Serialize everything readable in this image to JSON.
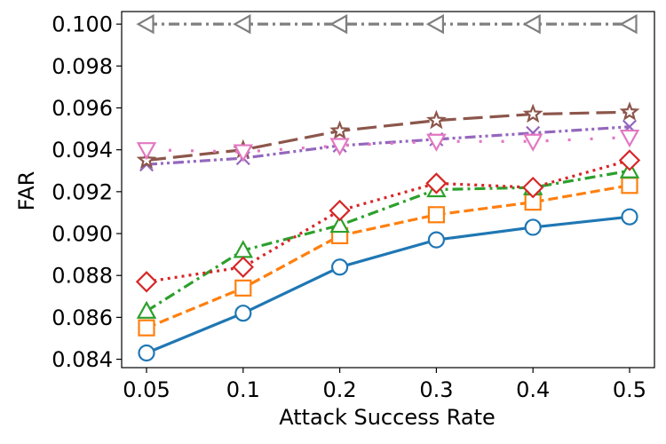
{
  "chart_data": {
    "type": "line",
    "xlabel": "Attack Success Rate",
    "ylabel": "FAR",
    "categories": [
      "0.05",
      "0.1",
      "0.2",
      "0.3",
      "0.4",
      "0.5"
    ],
    "ylim": [
      0.0836,
      0.1006
    ],
    "yticks": [
      "0.084",
      "0.086",
      "0.088",
      "0.090",
      "0.092",
      "0.094",
      "0.096",
      "0.098",
      "0.100"
    ],
    "yticks_values": [
      0.084,
      0.086,
      0.088,
      0.09,
      0.092,
      0.094,
      0.096,
      0.098,
      0.1
    ],
    "grid": false,
    "legend": "none",
    "series": [
      {
        "color": "#1f77b4",
        "dash": "solid",
        "marker": "circle",
        "values": [
          0.0843,
          0.0862,
          0.0884,
          0.0897,
          0.0903,
          0.0908
        ]
      },
      {
        "color": "#ff7f0e",
        "dash": "dashed",
        "marker": "square",
        "values": [
          0.0855,
          0.0874,
          0.0899,
          0.0909,
          0.0915,
          0.0923
        ]
      },
      {
        "color": "#2ca02c",
        "dash": "dashdot",
        "marker": "triangle-up",
        "values": [
          0.0863,
          0.0892,
          0.0904,
          0.0921,
          0.0922,
          0.093
        ]
      },
      {
        "color": "#d62728",
        "dash": "dotted",
        "marker": "diamond",
        "values": [
          0.0877,
          0.0884,
          0.0911,
          0.0924,
          0.0922,
          0.0935
        ]
      },
      {
        "color": "#9467bd",
        "dash": "dashdotdot",
        "marker": "x",
        "values": [
          0.0933,
          0.0936,
          0.0942,
          0.0945,
          0.0948,
          0.0951
        ]
      },
      {
        "color": "#8c564b",
        "dash": "longdash",
        "marker": "star",
        "values": [
          0.0935,
          0.094,
          0.0949,
          0.0954,
          0.0957,
          0.0958
        ]
      },
      {
        "color": "#e377c2",
        "dash": "sparsedot",
        "marker": "triangle-down",
        "values": [
          0.094,
          0.0939,
          0.0942,
          0.0944,
          0.0944,
          0.0946
        ]
      },
      {
        "color": "#7f7f7f",
        "dash": "dashdot",
        "marker": "triangle-left",
        "values": [
          0.1,
          0.1,
          0.1,
          0.1,
          0.1,
          0.1
        ]
      }
    ]
  }
}
